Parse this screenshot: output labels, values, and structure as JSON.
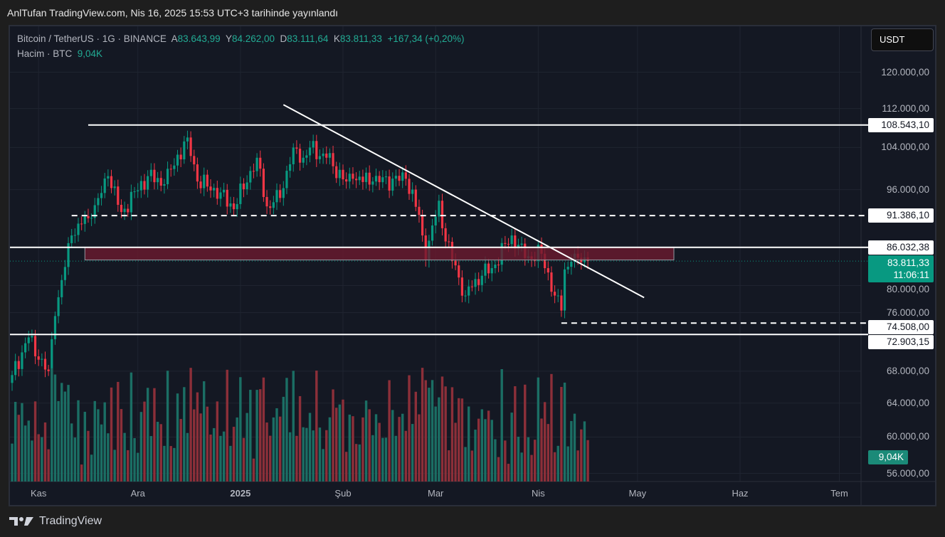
{
  "published": "AnlTufan TradingView.com, Nis 16, 2025 15:53 UTC+3 tarihinde yayınlandı",
  "legend": {
    "symbol": "Bitcoin / TetherUS · 1G · BINANCE",
    "o_label": "A",
    "o": "83.643,99",
    "h_label": "Y",
    "h": "84.262,00",
    "l_label": "D",
    "l": "83.111,64",
    "c_label": "K",
    "c": "83.811,33",
    "change": "+167,34 (+0,20%)",
    "volume_label": "Hacim · BTC",
    "volume": "9,04K"
  },
  "currency_button": "USDT",
  "price_ticks": [
    {
      "v": 120000,
      "t": "120.000,00"
    },
    {
      "v": 112000,
      "t": "112.000,00"
    },
    {
      "v": 104000,
      "t": "104.000,00"
    },
    {
      "v": 96000,
      "t": "96.000,00"
    },
    {
      "v": 80000,
      "t": "80.000,00"
    },
    {
      "v": 76000,
      "t": "76.000,00"
    },
    {
      "v": 68000,
      "t": "68.000,00"
    },
    {
      "v": 64000,
      "t": "64.000,00"
    },
    {
      "v": 60000,
      "t": "60.000,00"
    },
    {
      "v": 56000,
      "t": "56.000,00"
    }
  ],
  "levels": [
    {
      "v": 108543.1,
      "t": "108.543,10",
      "style": "solid",
      "from_day": 23
    },
    {
      "v": 91386.1,
      "t": "91.386,10",
      "style": "dashed",
      "from_day": 18
    },
    {
      "v": 86032.38,
      "t": "86.032,38",
      "style": "solid",
      "from_day": -1
    },
    {
      "v": 74508.0,
      "t": "74.508,00",
      "style": "dashed",
      "from_day": 166
    },
    {
      "v": 72903.15,
      "t": "72.903,15",
      "style": "solid",
      "from_day": -1
    }
  ],
  "zone": {
    "top": 86032.38,
    "bottom": 84000,
    "from_day": 22,
    "to_day": 200,
    "color": "#6b1a2e"
  },
  "trendline": {
    "start": {
      "day": 82,
      "price": 112800
    },
    "end": {
      "day": 191,
      "price": 78200
    }
  },
  "current": {
    "price": 83811.33,
    "price_text": "83.811,33",
    "countdown": "11:06:11",
    "color": "#089981"
  },
  "volume_tag": "9,04K",
  "x_labels": [
    {
      "day": 8,
      "t": "Kas"
    },
    {
      "day": 38,
      "t": "Ara"
    },
    {
      "day": 69,
      "t": "2025",
      "bold": true
    },
    {
      "day": 100,
      "t": "Şub"
    },
    {
      "day": 128,
      "t": "Mar"
    },
    {
      "day": 159,
      "t": "Nis"
    },
    {
      "day": 189,
      "t": "May"
    },
    {
      "day": 220,
      "t": "Haz"
    },
    {
      "day": 250,
      "t": "Tem"
    }
  ],
  "chart_data": {
    "type": "candlestick",
    "note": "approximate daily closes (USD) keypoints by day index from Oct 24 2024",
    "keypoints": [
      [
        0,
        67500
      ],
      [
        5,
        72500
      ],
      [
        8,
        69500
      ],
      [
        11,
        68000
      ],
      [
        13,
        75500
      ],
      [
        18,
        88000
      ],
      [
        20,
        90000
      ],
      [
        24,
        91000
      ],
      [
        29,
        98500
      ],
      [
        33,
        92000
      ],
      [
        41,
        98500
      ],
      [
        46,
        97000
      ],
      [
        53,
        106000
      ],
      [
        56,
        97500
      ],
      [
        63,
        95500
      ],
      [
        67,
        92500
      ],
      [
        74,
        102000
      ],
      [
        77,
        93000
      ],
      [
        81,
        94500
      ],
      [
        85,
        104000
      ],
      [
        88,
        102000
      ],
      [
        90,
        104000
      ],
      [
        95,
        102000
      ],
      [
        101,
        97500
      ],
      [
        103,
        98000
      ],
      [
        109,
        97500
      ],
      [
        119,
        98000
      ],
      [
        123,
        91500
      ],
      [
        125,
        84000
      ],
      [
        129,
        94000
      ],
      [
        131,
        87000
      ],
      [
        137,
        78500
      ],
      [
        140,
        81000
      ],
      [
        145,
        82700
      ],
      [
        151,
        88000
      ],
      [
        155,
        84300
      ],
      [
        160,
        85000
      ],
      [
        164,
        78500
      ],
      [
        166,
        76300
      ],
      [
        167,
        82500
      ],
      [
        170,
        85000
      ],
      [
        174,
        83811
      ]
    ],
    "up_color": "#089981",
    "down_color": "#f23645"
  },
  "brand": "TradingView"
}
